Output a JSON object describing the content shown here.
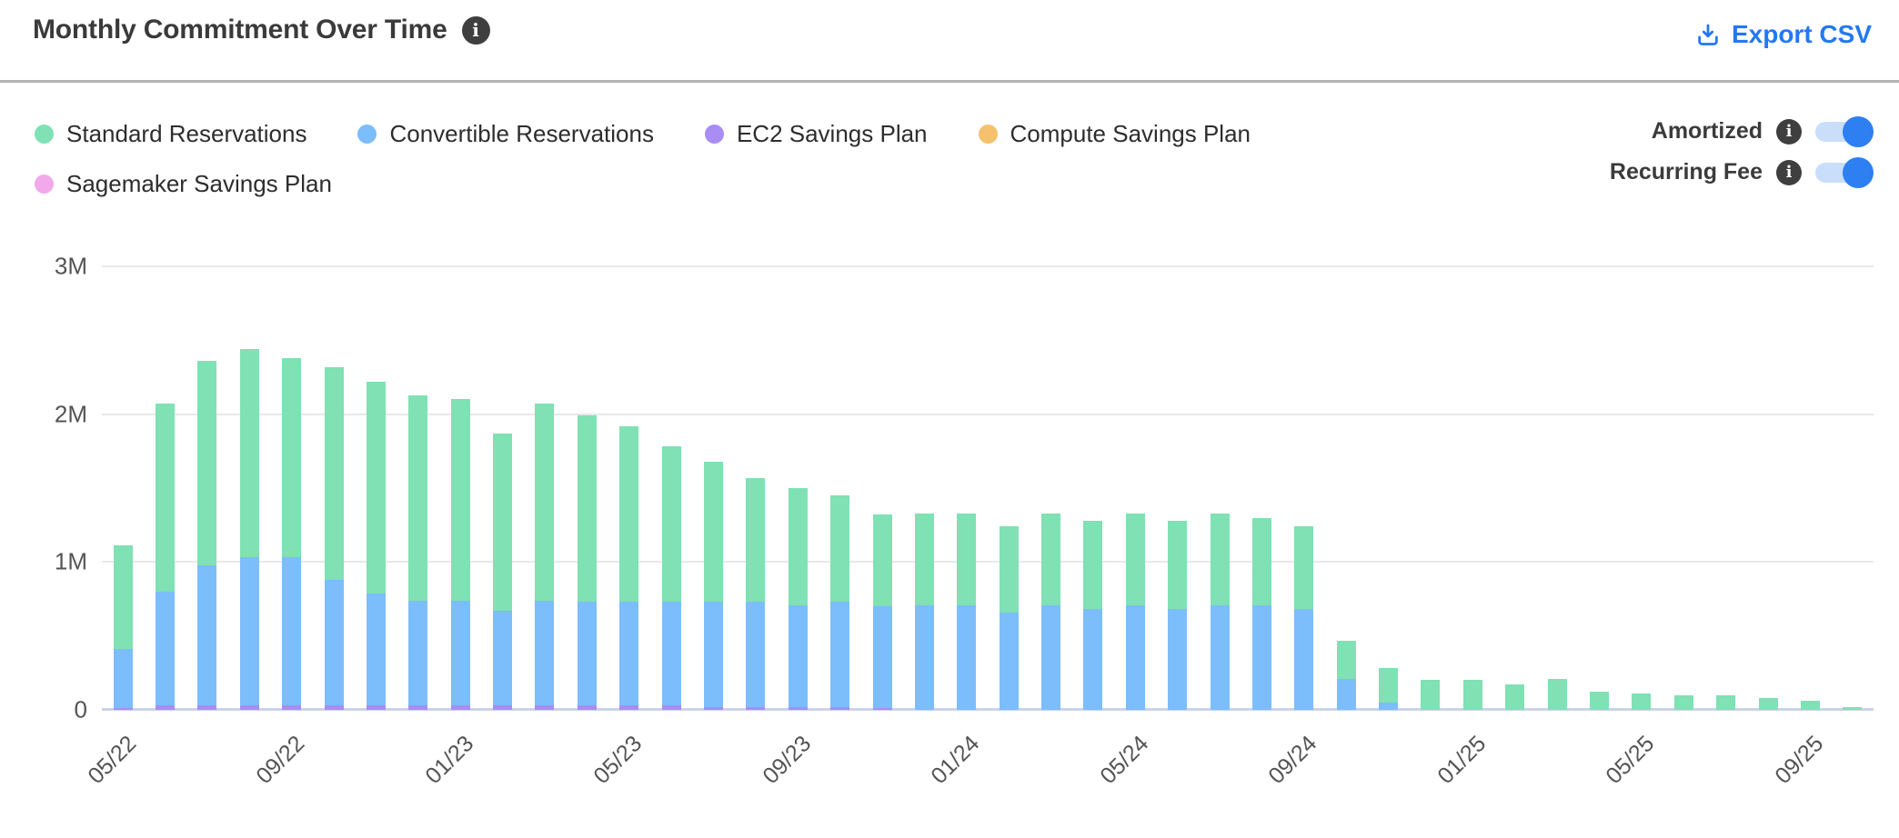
{
  "header": {
    "title": "Monthly Commitment Over Time",
    "export_label": "Export CSV"
  },
  "toggles": [
    {
      "label": "Amortized",
      "state": "on"
    },
    {
      "label": "Recurring Fee",
      "state": "on"
    }
  ],
  "colors": {
    "accent_blue": "#2478f0",
    "toggle_track": "#c9def9",
    "toggle_knob": "#2d7ff2",
    "info_icon_bg": "#3f3f3f",
    "gridline": "#e8e8e8",
    "baseline": "#ccd3e8",
    "divider": "#b4b4b4",
    "title_text": "#3a3a3a",
    "axis_text": "#545454"
  },
  "chart_data": {
    "type": "bar",
    "stacked": true,
    "title": "Monthly Commitment Over Time",
    "xlabel": "",
    "ylabel": "",
    "values_unit": "millions",
    "ylim": [
      0,
      3
    ],
    "grid": true,
    "legend_position": "top-left",
    "y_ticks": [
      {
        "label": "0",
        "value": 0
      },
      {
        "label": "1M",
        "value": 1
      },
      {
        "label": "2M",
        "value": 2
      },
      {
        "label": "3M",
        "value": 3
      }
    ],
    "x_label_every": 4,
    "categories": [
      "05/22",
      "06/22",
      "07/22",
      "08/22",
      "09/22",
      "10/22",
      "11/22",
      "12/22",
      "01/23",
      "02/23",
      "03/23",
      "04/23",
      "05/23",
      "06/23",
      "07/23",
      "08/23",
      "09/23",
      "10/23",
      "11/23",
      "12/23",
      "01/24",
      "02/24",
      "03/24",
      "04/24",
      "05/24",
      "06/24",
      "07/24",
      "08/24",
      "09/24",
      "10/24",
      "11/24",
      "12/24",
      "01/25",
      "02/25",
      "03/25",
      "04/25",
      "05/25",
      "06/25",
      "07/25",
      "08/25",
      "09/25",
      "10/25"
    ],
    "shown_x_tick_labels": [
      "05/22",
      "09/22",
      "01/23",
      "05/23",
      "09/23",
      "01/24",
      "05/24",
      "09/24",
      "01/25",
      "05/25",
      "09/25"
    ],
    "stack_order_bottom_to_top": [
      "Sagemaker Savings Plan",
      "Compute Savings Plan",
      "EC2 Savings Plan",
      "Convertible Reservations",
      "Standard Reservations"
    ],
    "series": [
      {
        "name": "Standard Reservations",
        "color": "#7fe1b4",
        "values": [
          0.7,
          1.27,
          1.38,
          1.41,
          1.35,
          1.44,
          1.43,
          1.39,
          1.36,
          1.2,
          1.33,
          1.26,
          1.19,
          1.05,
          0.95,
          0.84,
          0.79,
          0.72,
          0.62,
          0.62,
          0.62,
          0.58,
          0.62,
          0.6,
          0.62,
          0.6,
          0.62,
          0.59,
          0.56,
          0.26,
          0.23,
          0.2,
          0.2,
          0.17,
          0.21,
          0.12,
          0.11,
          0.1,
          0.1,
          0.08,
          0.06,
          0.02
        ]
      },
      {
        "name": "Convertible Reservations",
        "color": "#7cbdfb",
        "values": [
          0.4,
          0.77,
          0.95,
          1.0,
          1.0,
          0.85,
          0.76,
          0.71,
          0.71,
          0.64,
          0.71,
          0.7,
          0.7,
          0.7,
          0.71,
          0.71,
          0.69,
          0.71,
          0.69,
          0.71,
          0.71,
          0.66,
          0.71,
          0.68,
          0.71,
          0.68,
          0.71,
          0.71,
          0.68,
          0.21,
          0.05,
          0,
          0,
          0,
          0,
          0,
          0,
          0,
          0,
          0,
          0,
          0
        ]
      },
      {
        "name": "EC2 Savings Plan",
        "color": "#a98cf4",
        "values": [
          0.01,
          0.03,
          0.03,
          0.03,
          0.03,
          0.03,
          0.03,
          0.03,
          0.03,
          0.03,
          0.03,
          0.03,
          0.03,
          0.03,
          0.02,
          0.02,
          0.02,
          0.02,
          0.01,
          0,
          0,
          0,
          0,
          0,
          0,
          0,
          0,
          0,
          0,
          0,
          0,
          0,
          0,
          0,
          0,
          0,
          0,
          0,
          0,
          0,
          0,
          0
        ]
      },
      {
        "name": "Compute Savings Plan",
        "color": "#f6c16d",
        "values": [
          0,
          0,
          0,
          0,
          0,
          0,
          0,
          0,
          0,
          0,
          0,
          0,
          0,
          0,
          0,
          0,
          0,
          0,
          0,
          0,
          0,
          0,
          0,
          0,
          0,
          0,
          0,
          0,
          0,
          0,
          0,
          0,
          0,
          0,
          0,
          0,
          0,
          0,
          0,
          0,
          0,
          0
        ]
      },
      {
        "name": "Sagemaker Savings Plan",
        "color": "#f2a9ec",
        "values": [
          0,
          0,
          0,
          0,
          0,
          0,
          0,
          0,
          0,
          0,
          0,
          0,
          0,
          0,
          0,
          0,
          0,
          0,
          0,
          0,
          0,
          0,
          0,
          0,
          0,
          0,
          0,
          0,
          0,
          0,
          0,
          0,
          0,
          0,
          0,
          0,
          0,
          0,
          0,
          0,
          0,
          0
        ]
      }
    ]
  }
}
